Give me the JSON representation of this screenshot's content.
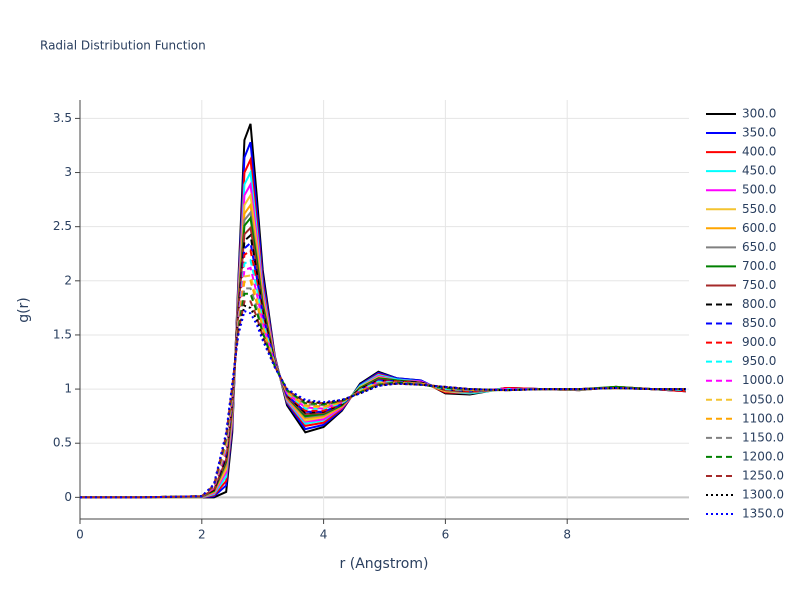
{
  "chart_data": {
    "type": "line",
    "title": "Radial Distribution Function",
    "x_label": "r (Angstrom)",
    "y_label": "g(r)",
    "xlim": [
      0,
      10
    ],
    "ylim": [
      -0.2,
      3.67
    ],
    "xticks": [
      0,
      2,
      4,
      6,
      8
    ],
    "yticks": [
      0,
      0.5,
      1,
      1.5,
      2,
      2.5,
      3,
      3.5
    ],
    "grid": true,
    "legend": "right",
    "x": [
      0,
      1,
      2,
      2.2,
      2.4,
      2.5,
      2.6,
      2.7,
      2.8,
      2.9,
      3.0,
      3.2,
      3.4,
      3.7,
      4.0,
      4.3,
      4.6,
      4.9,
      5.2,
      5.6,
      6.0,
      6.4,
      7.0,
      7.6,
      8.2,
      8.8,
      9.4,
      9.95
    ],
    "series": [
      {
        "name": "300.0",
        "color": "#000000",
        "dash": "solid",
        "values": [
          0,
          0,
          0,
          0,
          0.05,
          0.6,
          2.0,
          3.3,
          3.45,
          2.8,
          2.1,
          1.3,
          0.85,
          0.6,
          0.65,
          0.8,
          1.05,
          1.16,
          1.1,
          1.08,
          0.96,
          0.95,
          1.01,
          1,
          0.99,
          1.02,
          1,
          0.98
        ]
      },
      {
        "name": "350.0",
        "color": "#0000ff",
        "dash": "solid",
        "values": [
          0,
          0,
          0,
          0.01,
          0.11,
          0.65,
          1.95,
          3.14,
          3.28,
          2.68,
          2.04,
          1.29,
          0.87,
          0.63,
          0.67,
          0.81,
          1.04,
          1.15,
          1.1,
          1.08,
          0.97,
          0.96,
          1.01,
          1,
          0.99,
          1.02,
          1,
          0.98
        ]
      },
      {
        "name": "400.0",
        "color": "#ff0000",
        "dash": "solid",
        "values": [
          0,
          0,
          0,
          0.02,
          0.15,
          0.69,
          1.91,
          3.0,
          3.12,
          2.57,
          1.98,
          1.28,
          0.88,
          0.66,
          0.69,
          0.82,
          1.03,
          1.14,
          1.09,
          1.07,
          0.97,
          0.96,
          1.01,
          1,
          0.99,
          1.02,
          1,
          0.98
        ]
      },
      {
        "name": "450.0",
        "color": "#00ffff",
        "dash": "solid",
        "values": [
          0,
          0,
          0,
          0.03,
          0.19,
          0.72,
          1.87,
          2.89,
          3.0,
          2.49,
          1.93,
          1.27,
          0.89,
          0.68,
          0.71,
          0.83,
          1.03,
          1.13,
          1.09,
          1.07,
          0.98,
          0.96,
          1.0,
          1,
          0.99,
          1.02,
          1,
          0.99
        ]
      },
      {
        "name": "500.0",
        "color": "#ff00ff",
        "dash": "solid",
        "values": [
          0,
          0,
          0,
          0.04,
          0.23,
          0.74,
          1.84,
          2.79,
          2.89,
          2.42,
          1.89,
          1.27,
          0.9,
          0.7,
          0.72,
          0.83,
          1.02,
          1.12,
          1.08,
          1.07,
          0.98,
          0.97,
          1.0,
          1,
          0.99,
          1.02,
          1,
          0.99
        ]
      },
      {
        "name": "550.0",
        "color": "#f4c430",
        "dash": "solid",
        "values": [
          0,
          0,
          0,
          0.05,
          0.26,
          0.77,
          1.81,
          2.7,
          2.79,
          2.34,
          1.85,
          1.26,
          0.91,
          0.71,
          0.74,
          0.84,
          1.02,
          1.11,
          1.08,
          1.06,
          0.98,
          0.97,
          1.0,
          1,
          0.99,
          1.02,
          1,
          0.99
        ]
      },
      {
        "name": "600.0",
        "color": "#ffa500",
        "dash": "solid",
        "values": [
          0,
          0,
          0,
          0.05,
          0.29,
          0.79,
          1.79,
          2.62,
          2.7,
          2.28,
          1.82,
          1.26,
          0.91,
          0.73,
          0.75,
          0.84,
          1.01,
          1.1,
          1.08,
          1.06,
          0.99,
          0.97,
          1.0,
          1,
          0.99,
          1.02,
          1,
          0.99
        ]
      },
      {
        "name": "650.0",
        "color": "#808080",
        "dash": "solid",
        "values": [
          0,
          0,
          0,
          0.06,
          0.31,
          0.81,
          1.77,
          2.56,
          2.63,
          2.24,
          1.79,
          1.25,
          0.92,
          0.74,
          0.76,
          0.85,
          1.01,
          1.1,
          1.08,
          1.06,
          0.99,
          0.97,
          1.0,
          1,
          0.99,
          1.02,
          1,
          0.99
        ]
      },
      {
        "name": "700.0",
        "color": "#008000",
        "dash": "solid",
        "values": [
          0,
          0,
          0.01,
          0.06,
          0.33,
          0.83,
          1.75,
          2.51,
          2.58,
          2.2,
          1.78,
          1.25,
          0.93,
          0.75,
          0.77,
          0.85,
          1.01,
          1.1,
          1.08,
          1.06,
          0.99,
          0.98,
          1.0,
          1,
          1.0,
          1.02,
          1,
          0.99
        ]
      },
      {
        "name": "750.0",
        "color": "#a52a2a",
        "dash": "solid",
        "values": [
          0,
          0,
          0.01,
          0.07,
          0.35,
          0.85,
          1.73,
          2.43,
          2.49,
          2.14,
          1.74,
          1.25,
          0.93,
          0.77,
          0.78,
          0.86,
          1.0,
          1.09,
          1.07,
          1.06,
          0.99,
          0.98,
          1.0,
          1,
          1.0,
          1.01,
          1,
          0.99
        ]
      },
      {
        "name": "800.0",
        "color": "#000000",
        "dash": "dash",
        "values": [
          0,
          0,
          0.01,
          0.07,
          0.37,
          0.87,
          1.71,
          2.37,
          2.42,
          2.09,
          1.72,
          1.24,
          0.94,
          0.78,
          0.79,
          0.86,
          1.0,
          1.08,
          1.07,
          1.06,
          1.0,
          0.98,
          1.0,
          1,
          1.0,
          1.01,
          1,
          0.99
        ]
      },
      {
        "name": "850.0",
        "color": "#0000ff",
        "dash": "dash",
        "values": [
          0,
          0,
          0.01,
          0.08,
          0.4,
          0.88,
          1.69,
          2.3,
          2.35,
          2.04,
          1.69,
          1.24,
          0.94,
          0.79,
          0.79,
          0.86,
          0.99,
          1.08,
          1.07,
          1.05,
          1.0,
          0.98,
          1.0,
          1,
          1.0,
          1.01,
          1,
          0.99
        ]
      },
      {
        "name": "900.0",
        "color": "#ff0000",
        "dash": "dash",
        "values": [
          0,
          0,
          0.01,
          0.08,
          0.42,
          0.9,
          1.67,
          2.24,
          2.28,
          2.0,
          1.66,
          1.23,
          0.95,
          0.8,
          0.8,
          0.87,
          0.99,
          1.07,
          1.07,
          1.05,
          1.0,
          0.98,
          1.0,
          1,
          1.0,
          1.01,
          1,
          0.99
        ]
      },
      {
        "name": "950.0",
        "color": "#00ffff",
        "dash": "dash",
        "values": [
          0,
          0,
          0.01,
          0.09,
          0.45,
          0.92,
          1.64,
          2.16,
          2.19,
          1.94,
          1.63,
          1.23,
          0.96,
          0.82,
          0.82,
          0.87,
          0.99,
          1.07,
          1.06,
          1.05,
          1.0,
          0.99,
          1.0,
          1,
          1.0,
          1.01,
          1,
          0.99
        ]
      },
      {
        "name": "1000.0",
        "color": "#ff00ff",
        "dash": "dash",
        "values": [
          0,
          0,
          0.01,
          0.09,
          0.47,
          0.94,
          1.62,
          2.1,
          2.12,
          1.89,
          1.61,
          1.22,
          0.96,
          0.83,
          0.82,
          0.88,
          0.98,
          1.06,
          1.06,
          1.05,
          1.01,
          0.99,
          1.0,
          1,
          1.0,
          1.01,
          1,
          1.0
        ]
      },
      {
        "name": "1050.0",
        "color": "#f4c430",
        "dash": "dash",
        "values": [
          0,
          0,
          0.01,
          0.1,
          0.49,
          0.96,
          1.6,
          2.04,
          2.05,
          1.84,
          1.58,
          1.22,
          0.97,
          0.84,
          0.83,
          0.88,
          0.98,
          1.06,
          1.06,
          1.05,
          1.01,
          0.99,
          0.99,
          1,
          1.0,
          1.01,
          1,
          1.0
        ]
      },
      {
        "name": "1100.0",
        "color": "#ffa500",
        "dash": "dash",
        "values": [
          0,
          0,
          0.01,
          0.1,
          0.51,
          0.97,
          1.59,
          1.99,
          2.0,
          1.8,
          1.56,
          1.22,
          0.97,
          0.85,
          0.84,
          0.88,
          0.98,
          1.05,
          1.06,
          1.05,
          1.01,
          0.99,
          0.99,
          1,
          1.0,
          1.01,
          1,
          1.0
        ]
      },
      {
        "name": "1150.0",
        "color": "#808080",
        "dash": "dash",
        "values": [
          0,
          0,
          0.01,
          0.1,
          0.53,
          0.99,
          1.57,
          1.93,
          1.93,
          1.76,
          1.53,
          1.21,
          0.98,
          0.86,
          0.85,
          0.89,
          0.97,
          1.05,
          1.06,
          1.05,
          1.01,
          0.99,
          0.99,
          1,
          1.0,
          1.01,
          1,
          1.0
        ]
      },
      {
        "name": "1200.0",
        "color": "#008000",
        "dash": "dash",
        "values": [
          0,
          0,
          0.01,
          0.11,
          0.55,
          1.0,
          1.55,
          1.88,
          1.88,
          1.72,
          1.52,
          1.21,
          0.99,
          0.87,
          0.86,
          0.89,
          0.97,
          1.04,
          1.06,
          1.04,
          1.01,
          1.0,
          0.99,
          1,
          1.0,
          1.01,
          1,
          1.0
        ]
      },
      {
        "name": "1250.0",
        "color": "#a52a2a",
        "dash": "dash",
        "values": [
          0,
          0,
          0.01,
          0.11,
          0.57,
          1.02,
          1.53,
          1.81,
          1.81,
          1.67,
          1.49,
          1.21,
          0.99,
          0.88,
          0.87,
          0.89,
          0.97,
          1.04,
          1.05,
          1.04,
          1.02,
          1.0,
          0.99,
          1,
          1.0,
          1.01,
          1,
          1.0
        ]
      },
      {
        "name": "1300.0",
        "color": "#000000",
        "dash": "dot",
        "values": [
          0,
          0,
          0.01,
          0.12,
          0.58,
          1.04,
          1.52,
          1.77,
          1.75,
          1.64,
          1.47,
          1.2,
          1.0,
          0.89,
          0.87,
          0.9,
          0.96,
          1.03,
          1.05,
          1.04,
          1.02,
          1.0,
          0.99,
          1,
          1.0,
          1.01,
          1,
          1.0
        ]
      },
      {
        "name": "1350.0",
        "color": "#0000ff",
        "dash": "dot",
        "values": [
          0,
          0,
          0.01,
          0.12,
          0.6,
          1.05,
          1.5,
          1.72,
          1.7,
          1.6,
          1.45,
          1.2,
          1.0,
          0.9,
          0.88,
          0.9,
          0.96,
          1.03,
          1.05,
          1.04,
          1.02,
          1.0,
          0.99,
          1,
          1.0,
          1.01,
          1,
          1.0
        ]
      }
    ]
  }
}
